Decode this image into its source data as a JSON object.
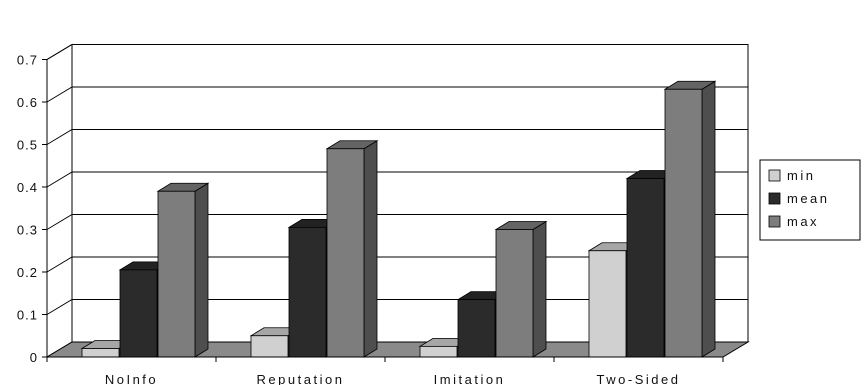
{
  "chart_data": {
    "type": "bar",
    "categories": [
      "NoInfo",
      "Reputation",
      "Imitation",
      "Two-Sided"
    ],
    "series": [
      {
        "name": "min",
        "values": [
          0.02,
          0.05,
          0.025,
          0.25
        ],
        "color": "#d0d0d0"
      },
      {
        "name": "mean",
        "values": [
          0.205,
          0.305,
          0.135,
          0.42
        ],
        "color": "#2b2b2b"
      },
      {
        "name": "max",
        "values": [
          0.39,
          0.49,
          0.3,
          0.63
        ],
        "color": "#7d7d7d"
      }
    ],
    "y_ticks": [
      "0",
      "0.1",
      "0.2",
      "0.3",
      "0.4",
      "0.5",
      "0.6",
      "0.7"
    ],
    "ylim": [
      0,
      0.7
    ],
    "grid": true,
    "legend_position": "right",
    "style": "3d-clustered-column"
  }
}
